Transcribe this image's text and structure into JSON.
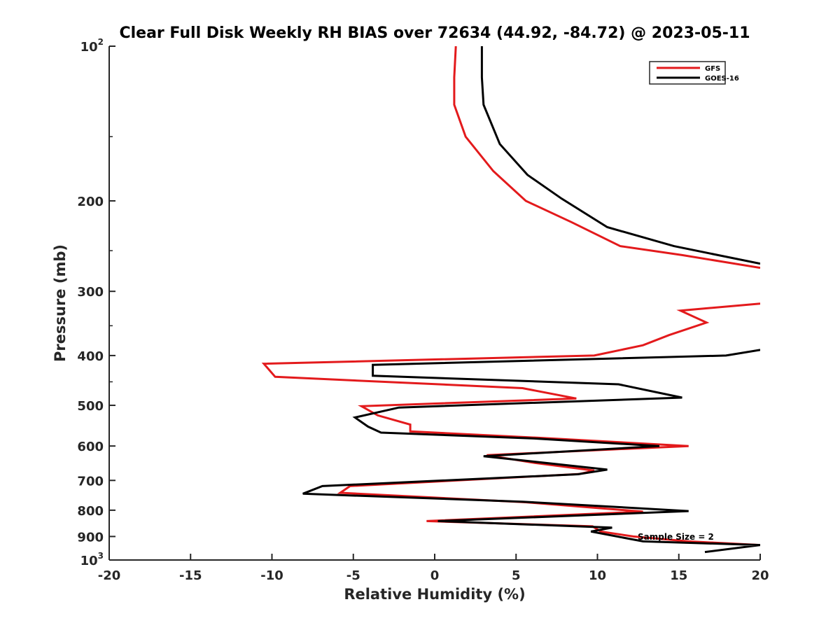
{
  "chart_data": {
    "type": "line",
    "title": "Clear Full Disk Weekly RH BIAS over 72634 (44.92, -84.72) @ 2023-05-11",
    "xlabel": "Relative Humidity (%)",
    "ylabel": "Pressure (mb)",
    "xlim": [
      -20,
      20
    ],
    "ylim": [
      100,
      1000
    ],
    "yscale": "log",
    "y_reversed": true,
    "x_ticks": [
      -20,
      -15,
      -10,
      -5,
      0,
      5,
      10,
      15,
      20
    ],
    "x_tick_labels": [
      "-20",
      "-15",
      "-10",
      "-5",
      "0",
      "5",
      "10",
      "15",
      "20"
    ],
    "y_ticks": [
      {
        "value": 100,
        "label": "10",
        "sup": "2"
      },
      {
        "value": 200,
        "label": "200",
        "sup": ""
      },
      {
        "value": 300,
        "label": "300",
        "sup": ""
      },
      {
        "value": 400,
        "label": "400",
        "sup": ""
      },
      {
        "value": 500,
        "label": "500",
        "sup": ""
      },
      {
        "value": 600,
        "label": "600",
        "sup": ""
      },
      {
        "value": 700,
        "label": "700",
        "sup": ""
      },
      {
        "value": 800,
        "label": "800",
        "sup": ""
      },
      {
        "value": 900,
        "label": "900",
        "sup": ""
      },
      {
        "value": 1000,
        "label": "10",
        "sup": "3"
      }
    ],
    "legend": {
      "position": "top-right"
    },
    "annotation": "Sample Size = 2",
    "series": [
      {
        "name": "GFS",
        "color": "#e31a1c",
        "points": [
          {
            "x": 1.3,
            "y": 100
          },
          {
            "x": 1.2,
            "y": 115
          },
          {
            "x": 1.2,
            "y": 130
          },
          {
            "x": 1.9,
            "y": 150
          },
          {
            "x": 3.6,
            "y": 175
          },
          {
            "x": 5.6,
            "y": 200
          },
          {
            "x": 8.4,
            "y": 220
          },
          {
            "x": 11.4,
            "y": 245
          },
          {
            "x": 15.2,
            "y": 255
          },
          {
            "x": 20,
            "y": 270
          },
          {
            "x": null,
            "y": null
          },
          {
            "x": 20,
            "y": 317
          },
          {
            "x": 15.1,
            "y": 327
          },
          {
            "x": 16.7,
            "y": 345
          },
          {
            "x": 14.4,
            "y": 365
          },
          {
            "x": 12.8,
            "y": 382
          },
          {
            "x": 9.8,
            "y": 400
          },
          {
            "x": -10.5,
            "y": 415
          },
          {
            "x": -9.8,
            "y": 440
          },
          {
            "x": 5.4,
            "y": 463
          },
          {
            "x": 8.7,
            "y": 485
          },
          {
            "x": -4.5,
            "y": 502
          },
          {
            "x": -3.5,
            "y": 523
          },
          {
            "x": -1.5,
            "y": 545
          },
          {
            "x": -1.5,
            "y": 562
          },
          {
            "x": 6.3,
            "y": 578
          },
          {
            "x": 15.6,
            "y": 600
          },
          {
            "x": 3.2,
            "y": 625
          },
          {
            "x": 6.1,
            "y": 647
          },
          {
            "x": 9.8,
            "y": 670
          },
          {
            "x": 8.9,
            "y": 680
          },
          {
            "x": -5.2,
            "y": 718
          },
          {
            "x": -5.8,
            "y": 740
          },
          {
            "x": 5.6,
            "y": 772
          },
          {
            "x": 12.8,
            "y": 805
          },
          {
            "x": -0.5,
            "y": 840
          },
          {
            "x": 9.7,
            "y": 860
          },
          {
            "x": 10.2,
            "y": 880
          },
          {
            "x": 12.2,
            "y": 900
          },
          {
            "x": 15.6,
            "y": 920
          },
          {
            "x": 20,
            "y": 935
          }
        ]
      },
      {
        "name": "GOES-16",
        "color": "#000000",
        "points": [
          {
            "x": 2.9,
            "y": 100
          },
          {
            "x": 2.9,
            "y": 115
          },
          {
            "x": 3.0,
            "y": 130
          },
          {
            "x": 4.0,
            "y": 155
          },
          {
            "x": 5.7,
            "y": 178
          },
          {
            "x": 7.8,
            "y": 198
          },
          {
            "x": 10.6,
            "y": 225
          },
          {
            "x": 14.7,
            "y": 245
          },
          {
            "x": 20,
            "y": 265
          },
          {
            "x": null,
            "y": null
          },
          {
            "x": 20,
            "y": 390
          },
          {
            "x": 17.9,
            "y": 400
          },
          {
            "x": -3.8,
            "y": 417
          },
          {
            "x": -3.8,
            "y": 438
          },
          {
            "x": 11.3,
            "y": 455
          },
          {
            "x": 15.2,
            "y": 483
          },
          {
            "x": -2.2,
            "y": 505
          },
          {
            "x": -4.9,
            "y": 528
          },
          {
            "x": -4.1,
            "y": 550
          },
          {
            "x": -3.3,
            "y": 565
          },
          {
            "x": 6.1,
            "y": 580
          },
          {
            "x": 13.8,
            "y": 600
          },
          {
            "x": 3.0,
            "y": 628
          },
          {
            "x": 10.6,
            "y": 667
          },
          {
            "x": 8.8,
            "y": 681
          },
          {
            "x": -6.9,
            "y": 718
          },
          {
            "x": -8.1,
            "y": 743
          },
          {
            "x": 5.4,
            "y": 770
          },
          {
            "x": 15.6,
            "y": 803
          },
          {
            "x": 0.2,
            "y": 840
          },
          {
            "x": 10.9,
            "y": 865
          },
          {
            "x": 9.6,
            "y": 880
          },
          {
            "x": 12.8,
            "y": 920
          },
          {
            "x": 20,
            "y": 935
          },
          {
            "x": 16.6,
            "y": 965
          }
        ]
      }
    ]
  }
}
